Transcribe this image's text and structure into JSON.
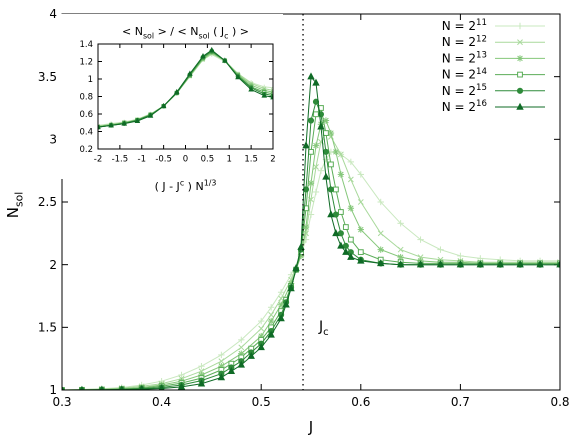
{
  "chart_data": [
    {
      "type": "line",
      "xlabel": "J",
      "ylabel_main": "N",
      "ylabel_sub": "sol",
      "xlim": [
        0.3,
        0.8
      ],
      "ylim": [
        1,
        4
      ],
      "xticks": [
        "0.3",
        "0.4",
        "0.5",
        "0.6",
        "0.7",
        "0.8"
      ],
      "yticks": [
        "1",
        "1.5",
        "2",
        "2.5",
        "3",
        "3.5",
        "4"
      ],
      "grid": false,
      "legend_position": "top-right",
      "critical_line": {
        "x": 0.542,
        "label_main": "J",
        "label_sub": "c"
      },
      "series": [
        {
          "name": "N = 2^11",
          "color": "#c9e8bf",
          "marker": "plus",
          "x": [
            0.3,
            0.32,
            0.34,
            0.36,
            0.38,
            0.4,
            0.42,
            0.44,
            0.46,
            0.48,
            0.5,
            0.51,
            0.52,
            0.53,
            0.54,
            0.545,
            0.55,
            0.555,
            0.56,
            0.565,
            0.57,
            0.58,
            0.59,
            0.6,
            0.62,
            0.64,
            0.66,
            0.68,
            0.7,
            0.72,
            0.74,
            0.76,
            0.78,
            0.8
          ],
          "y": [
            1.0,
            1.005,
            1.01,
            1.02,
            1.04,
            1.07,
            1.12,
            1.19,
            1.28,
            1.4,
            1.55,
            1.66,
            1.78,
            1.92,
            2.08,
            2.2,
            2.4,
            2.58,
            2.75,
            2.84,
            2.9,
            2.88,
            2.82,
            2.72,
            2.5,
            2.33,
            2.2,
            2.12,
            2.07,
            2.05,
            2.04,
            2.03,
            2.03,
            2.03
          ]
        },
        {
          "name": "N = 2^12",
          "color": "#a9d99c",
          "marker": "x",
          "x": [
            0.3,
            0.32,
            0.34,
            0.36,
            0.38,
            0.4,
            0.42,
            0.44,
            0.46,
            0.48,
            0.5,
            0.51,
            0.52,
            0.53,
            0.54,
            0.545,
            0.55,
            0.555,
            0.56,
            0.565,
            0.57,
            0.58,
            0.59,
            0.6,
            0.62,
            0.64,
            0.66,
            0.68,
            0.7,
            0.72,
            0.74,
            0.76,
            0.78,
            0.8
          ],
          "y": [
            1.0,
            1.003,
            1.007,
            1.015,
            1.03,
            1.05,
            1.09,
            1.15,
            1.23,
            1.34,
            1.49,
            1.6,
            1.73,
            1.88,
            2.08,
            2.25,
            2.52,
            2.78,
            2.98,
            3.05,
            3.02,
            2.88,
            2.68,
            2.5,
            2.25,
            2.12,
            2.06,
            2.04,
            2.03,
            2.02,
            2.02,
            2.02,
            2.02,
            2.02
          ]
        },
        {
          "name": "N = 2^13",
          "color": "#85c77a",
          "marker": "star",
          "x": [
            0.3,
            0.32,
            0.34,
            0.36,
            0.38,
            0.4,
            0.42,
            0.44,
            0.46,
            0.48,
            0.5,
            0.51,
            0.52,
            0.53,
            0.54,
            0.545,
            0.55,
            0.555,
            0.56,
            0.565,
            0.57,
            0.575,
            0.58,
            0.59,
            0.6,
            0.62,
            0.64,
            0.66,
            0.68,
            0.7,
            0.72,
            0.74,
            0.76,
            0.78,
            0.8
          ],
          "y": [
            1.0,
            1.002,
            1.005,
            1.01,
            1.02,
            1.04,
            1.07,
            1.12,
            1.19,
            1.29,
            1.43,
            1.55,
            1.68,
            1.85,
            2.07,
            2.3,
            2.65,
            2.95,
            3.12,
            3.15,
            3.05,
            2.9,
            2.72,
            2.45,
            2.28,
            2.12,
            2.06,
            2.03,
            2.02,
            2.02,
            2.01,
            2.01,
            2.01,
            2.01,
            2.01
          ]
        },
        {
          "name": "N = 2^14",
          "color": "#5bad58",
          "marker": "square",
          "x": [
            0.3,
            0.32,
            0.34,
            0.36,
            0.38,
            0.4,
            0.42,
            0.44,
            0.46,
            0.47,
            0.48,
            0.49,
            0.5,
            0.51,
            0.52,
            0.525,
            0.53,
            0.535,
            0.54,
            0.545,
            0.55,
            0.555,
            0.56,
            0.565,
            0.57,
            0.575,
            0.58,
            0.585,
            0.59,
            0.6,
            0.62,
            0.64,
            0.66,
            0.68,
            0.7,
            0.72,
            0.74,
            0.76,
            0.78,
            0.8
          ],
          "y": [
            1.0,
            1.001,
            1.003,
            1.007,
            1.015,
            1.03,
            1.055,
            1.095,
            1.16,
            1.21,
            1.26,
            1.33,
            1.4,
            1.5,
            1.63,
            1.72,
            1.83,
            1.96,
            2.1,
            2.45,
            2.9,
            3.2,
            3.25,
            3.05,
            2.8,
            2.6,
            2.42,
            2.3,
            2.2,
            2.1,
            2.04,
            2.02,
            2.01,
            2.01,
            2.01,
            2.01,
            2.01,
            2.01,
            2.01,
            2.01
          ]
        },
        {
          "name": "N = 2^15",
          "color": "#2e8b3a",
          "marker": "circle",
          "x": [
            0.3,
            0.32,
            0.34,
            0.36,
            0.38,
            0.4,
            0.42,
            0.44,
            0.46,
            0.47,
            0.48,
            0.49,
            0.5,
            0.51,
            0.52,
            0.525,
            0.53,
            0.535,
            0.54,
            0.545,
            0.55,
            0.555,
            0.56,
            0.565,
            0.57,
            0.575,
            0.58,
            0.585,
            0.59,
            0.6,
            0.62,
            0.64,
            0.66,
            0.68,
            0.7,
            0.72,
            0.74,
            0.76,
            0.78,
            0.8
          ],
          "y": [
            1.0,
            1.001,
            1.002,
            1.005,
            1.01,
            1.02,
            1.04,
            1.075,
            1.13,
            1.18,
            1.23,
            1.3,
            1.37,
            1.47,
            1.6,
            1.7,
            1.82,
            1.96,
            2.12,
            2.6,
            3.15,
            3.3,
            3.2,
            2.9,
            2.6,
            2.4,
            2.25,
            2.15,
            2.1,
            2.04,
            2.01,
            2.0,
            2.0,
            2.0,
            2.0,
            2.0,
            2.0,
            2.0,
            2.0,
            2.0
          ]
        },
        {
          "name": "N = 2^16",
          "color": "#0f6b26",
          "marker": "triangle",
          "x": [
            0.3,
            0.32,
            0.34,
            0.36,
            0.38,
            0.4,
            0.42,
            0.44,
            0.46,
            0.47,
            0.48,
            0.49,
            0.5,
            0.51,
            0.52,
            0.525,
            0.53,
            0.535,
            0.54,
            0.545,
            0.55,
            0.555,
            0.56,
            0.565,
            0.57,
            0.575,
            0.58,
            0.585,
            0.59,
            0.6,
            0.62,
            0.64,
            0.66,
            0.68,
            0.7,
            0.72,
            0.74,
            0.76,
            0.78,
            0.8
          ],
          "y": [
            1.0,
            1.0,
            1.001,
            1.003,
            1.006,
            1.012,
            1.025,
            1.05,
            1.1,
            1.15,
            1.2,
            1.27,
            1.34,
            1.44,
            1.57,
            1.68,
            1.81,
            1.97,
            2.14,
            2.95,
            3.5,
            3.45,
            3.1,
            2.7,
            2.4,
            2.25,
            2.15,
            2.1,
            2.06,
            2.03,
            2.01,
            2.0,
            2.0,
            2.0,
            2.0,
            2.0,
            2.0,
            2.0,
            2.0,
            2.0
          ]
        }
      ]
    },
    {
      "type": "line",
      "title_parts": [
        "< N",
        "sol",
        " > / < N",
        "sol",
        " ( J",
        "c",
        " ) >"
      ],
      "xlabel_parts": [
        "( J - J",
        "c",
        " ) N",
        "1/3"
      ],
      "xlim": [
        -2,
        2
      ],
      "ylim": [
        0.2,
        1.4
      ],
      "xticks": [
        "-2",
        "-1.5",
        "-1",
        "-0.5",
        "0",
        "0.5",
        "1",
        "1.5",
        "2"
      ],
      "yticks": [
        "0.2",
        "0.4",
        "0.6",
        "0.8",
        "1",
        "1.2",
        "1.4"
      ],
      "grid": false,
      "series": [
        {
          "name": "N = 2^11",
          "color": "#c9e8bf",
          "marker": "plus",
          "x": [
            -2,
            -1.7,
            -1.4,
            -1.1,
            -0.8,
            -0.5,
            -0.2,
            0.1,
            0.4,
            0.6,
            0.9,
            1.2,
            1.5,
            1.8,
            2
          ],
          "y": [
            0.47,
            0.49,
            0.51,
            0.54,
            0.6,
            0.69,
            0.84,
            1.03,
            1.22,
            1.28,
            1.2,
            1.06,
            0.96,
            0.91,
            0.9
          ]
        },
        {
          "name": "N = 2^12",
          "color": "#a9d99c",
          "marker": "x",
          "x": [
            -2,
            -1.7,
            -1.4,
            -1.1,
            -0.8,
            -0.5,
            -0.2,
            0.1,
            0.4,
            0.6,
            0.9,
            1.2,
            1.5,
            1.8,
            2
          ],
          "y": [
            0.46,
            0.48,
            0.5,
            0.54,
            0.6,
            0.69,
            0.84,
            1.03,
            1.22,
            1.29,
            1.21,
            1.06,
            0.95,
            0.89,
            0.87
          ]
        },
        {
          "name": "N = 2^13",
          "color": "#85c77a",
          "marker": "star",
          "x": [
            -2,
            -1.7,
            -1.4,
            -1.1,
            -0.8,
            -0.5,
            -0.2,
            0.1,
            0.4,
            0.6,
            0.9,
            1.2,
            1.5,
            1.8,
            2
          ],
          "y": [
            0.46,
            0.48,
            0.5,
            0.53,
            0.59,
            0.69,
            0.84,
            1.04,
            1.23,
            1.3,
            1.21,
            1.05,
            0.93,
            0.87,
            0.85
          ]
        },
        {
          "name": "N = 2^14",
          "color": "#5bad58",
          "marker": "square",
          "x": [
            -2,
            -1.7,
            -1.4,
            -1.1,
            -0.8,
            -0.5,
            -0.2,
            0.1,
            0.4,
            0.6,
            0.9,
            1.2,
            1.5,
            1.8,
            2
          ],
          "y": [
            0.45,
            0.47,
            0.5,
            0.53,
            0.59,
            0.69,
            0.84,
            1.04,
            1.24,
            1.31,
            1.21,
            1.04,
            0.91,
            0.85,
            0.83
          ]
        },
        {
          "name": "N = 2^15",
          "color": "#2e8b3a",
          "marker": "circle",
          "x": [
            -2,
            -1.7,
            -1.4,
            -1.1,
            -0.8,
            -0.5,
            -0.2,
            0.1,
            0.4,
            0.6,
            0.9,
            1.2,
            1.5,
            1.8,
            2
          ],
          "y": [
            0.45,
            0.47,
            0.49,
            0.53,
            0.59,
            0.69,
            0.84,
            1.05,
            1.25,
            1.32,
            1.21,
            1.03,
            0.9,
            0.83,
            0.81
          ]
        },
        {
          "name": "N = 2^16",
          "color": "#0f6b26",
          "marker": "triangle",
          "x": [
            -2,
            -1.7,
            -1.4,
            -1.1,
            -0.8,
            -0.5,
            -0.2,
            0.1,
            0.4,
            0.6,
            0.9,
            1.2,
            1.5,
            1.8,
            2
          ],
          "y": [
            0.45,
            0.47,
            0.49,
            0.52,
            0.58,
            0.69,
            0.85,
            1.06,
            1.26,
            1.33,
            1.21,
            1.02,
            0.88,
            0.81,
            0.79
          ]
        }
      ]
    }
  ],
  "legend": [
    {
      "base": "N = 2",
      "exp": "11"
    },
    {
      "base": "N = 2",
      "exp": "12"
    },
    {
      "base": "N = 2",
      "exp": "13"
    },
    {
      "base": "N = 2",
      "exp": "14"
    },
    {
      "base": "N = 2",
      "exp": "15"
    },
    {
      "base": "N = 2",
      "exp": "16"
    }
  ]
}
